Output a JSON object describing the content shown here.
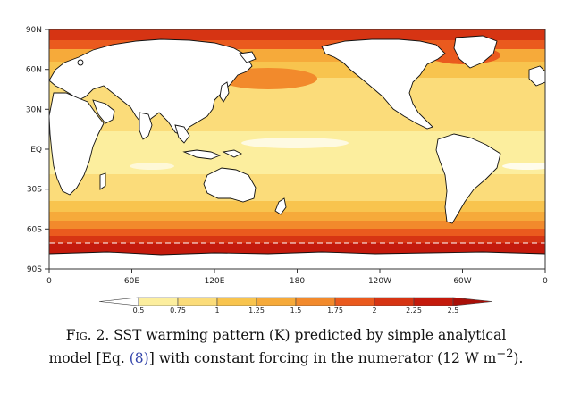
{
  "map": {
    "lat_labels": [
      "90N",
      "60N",
      "30N",
      "EQ",
      "30S",
      "60S",
      "90S"
    ],
    "lon_labels": [
      "0",
      "60E",
      "120E",
      "180",
      "120W",
      "60W",
      "0"
    ],
    "land_color": "#ffffff",
    "coastline_color": "#111111"
  },
  "colorbar": {
    "levels": [
      "0.5",
      "0.75",
      "1",
      "1.25",
      "1.5",
      "1.75",
      "2",
      "2.25",
      "2.5"
    ],
    "colors": [
      "#ffffff",
      "#fcee9e",
      "#fbdc7a",
      "#f8c44e",
      "#f6aa3a",
      "#f28a2c",
      "#ea5a1e",
      "#d63413",
      "#c41a0c",
      "#a90f08"
    ]
  },
  "caption": {
    "fig_label": "Fig. 2.",
    "line1_rest": " SST warming pattern (K) predicted by simple analytical",
    "line2_pre": "model [Eq. ",
    "eq_ref": "(8)",
    "line2_post": "] with constant forcing in the numerator (12 W m",
    "unit_exp": "−2",
    "line2_end": ")."
  }
}
